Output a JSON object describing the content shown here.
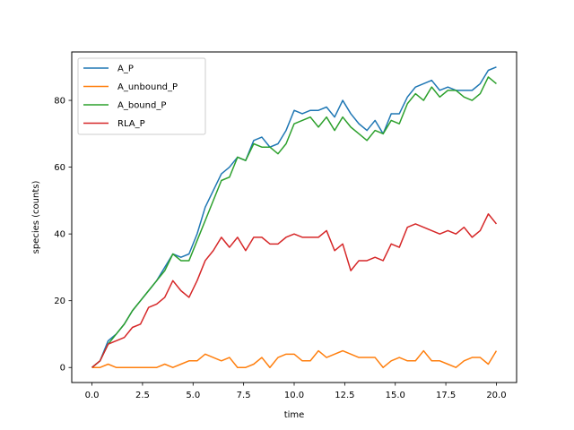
{
  "chart_data": {
    "type": "line",
    "title": "",
    "xlabel": "time",
    "ylabel": "species (counts)",
    "xlim": [
      -1,
      21
    ],
    "ylim": [
      -4.5,
      94.5
    ],
    "xticks": [
      0.0,
      2.5,
      5.0,
      7.5,
      10.0,
      12.5,
      15.0,
      17.5,
      20.0
    ],
    "xtick_labels": [
      "0.0",
      "2.5",
      "5.0",
      "7.5",
      "10.0",
      "12.5",
      "15.0",
      "17.5",
      "20.0"
    ],
    "yticks": [
      0,
      20,
      40,
      60,
      80
    ],
    "ytick_labels": [
      "0",
      "20",
      "40",
      "60",
      "80"
    ],
    "grid": false,
    "legend": "top-left",
    "x": [
      0.0,
      0.4,
      0.8,
      1.2,
      1.6,
      2.0,
      2.4,
      2.8,
      3.2,
      3.6,
      4.0,
      4.4,
      4.8,
      5.2,
      5.6,
      6.0,
      6.4,
      6.8,
      7.2,
      7.6,
      8.0,
      8.4,
      8.8,
      9.2,
      9.6,
      10.0,
      10.4,
      10.8,
      11.2,
      11.6,
      12.0,
      12.4,
      12.8,
      13.2,
      13.6,
      14.0,
      14.4,
      14.8,
      15.2,
      15.6,
      16.0,
      16.4,
      16.8,
      17.2,
      17.6,
      18.0,
      18.4,
      18.8,
      19.2,
      19.6,
      20.0
    ],
    "series": [
      {
        "name": "A_P",
        "color": "#1f77b4",
        "values": [
          0,
          2,
          8,
          10,
          13,
          17,
          20,
          23,
          26,
          30,
          34,
          33,
          34,
          40,
          48,
          53,
          58,
          60,
          63,
          62,
          68,
          69,
          66,
          67,
          71,
          77,
          76,
          77,
          77,
          78,
          75,
          80,
          76,
          73,
          71,
          74,
          70,
          76,
          76,
          81,
          84,
          85,
          86,
          83,
          84,
          83,
          83,
          83,
          85,
          89,
          90
        ]
      },
      {
        "name": "A_unbound_P",
        "color": "#ff7f0e",
        "values": [
          0,
          0,
          1,
          0,
          0,
          0,
          0,
          0,
          0,
          1,
          0,
          1,
          2,
          2,
          4,
          3,
          2,
          3,
          0,
          0,
          1,
          3,
          0,
          3,
          4,
          4,
          2,
          2,
          5,
          3,
          4,
          5,
          4,
          3,
          3,
          3,
          0,
          2,
          3,
          2,
          2,
          5,
          2,
          2,
          1,
          0,
          2,
          3,
          3,
          1,
          5
        ]
      },
      {
        "name": "A_bound_P",
        "color": "#2ca02c",
        "values": [
          0,
          2,
          7,
          10,
          13,
          17,
          20,
          23,
          26,
          29,
          34,
          32,
          32,
          38,
          44,
          50,
          56,
          57,
          63,
          62,
          67,
          66,
          66,
          64,
          67,
          73,
          74,
          75,
          72,
          75,
          71,
          75,
          72,
          70,
          68,
          71,
          70,
          74,
          73,
          79,
          82,
          80,
          84,
          81,
          83,
          83,
          81,
          80,
          82,
          87,
          85
        ]
      },
      {
        "name": "RLA_P",
        "color": "#d62728",
        "values": [
          0,
          2,
          7,
          8,
          9,
          12,
          13,
          18,
          19,
          21,
          26,
          23,
          21,
          26,
          32,
          35,
          39,
          36,
          39,
          35,
          39,
          39,
          37,
          37,
          39,
          40,
          39,
          39,
          39,
          41,
          35,
          37,
          29,
          32,
          32,
          33,
          32,
          37,
          36,
          42,
          43,
          42,
          41,
          40,
          41,
          40,
          42,
          39,
          41,
          46,
          43
        ]
      }
    ]
  }
}
